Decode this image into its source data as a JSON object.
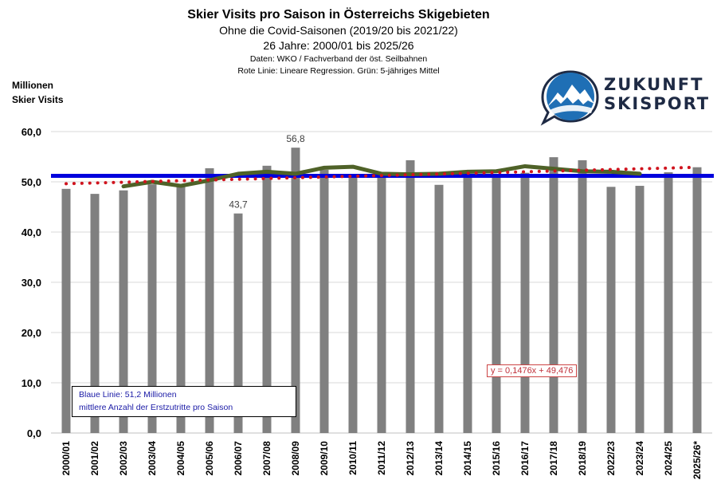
{
  "header": {
    "title": "Skier Visits pro Saison in Österreichs Skigebieten",
    "subtitle1": "Ohne die Covid-Saisonen (2019/20 bis 2021/22)",
    "subtitle2": "26 Jahre: 2000/01 bis 2025/26",
    "source": "Daten: WKO / Fachverband der öst. Seilbahnen",
    "legend_note": "Rote Linie: Lineare Regression. Grün: 5-jähriges Mittel"
  },
  "logo": {
    "line1": "ZUKUNFT",
    "line2": "SKISPORT"
  },
  "colors": {
    "bar": "#808080",
    "mean_line": "#0000dd",
    "regression": "#d0141e",
    "moving_avg": "#4f6228",
    "grid": "#d9d9d9"
  },
  "chart_data": {
    "type": "bar",
    "title": "Skier Visits pro Saison in Österreichs Skigebieten",
    "ylabel_line1": "Millionen",
    "ylabel_line2": "Skier Visits",
    "ylim": [
      0,
      60
    ],
    "yticks": [
      "0,0",
      "10,0",
      "20,0",
      "30,0",
      "40,0",
      "50,0",
      "60,0"
    ],
    "ytick_values": [
      0,
      10,
      20,
      30,
      40,
      50,
      60
    ],
    "grid": true,
    "categories": [
      "2000/01",
      "2001/02",
      "2002/03",
      "2003/04",
      "2004/05",
      "2005/06",
      "2006/07",
      "2007/08",
      "2008/09",
      "2009/10",
      "2010/11",
      "2011/12",
      "2012/13",
      "2013/14",
      "2014/15",
      "2015/16",
      "2016/17",
      "2017/18",
      "2018/19",
      "2022/23",
      "2023/24",
      "2024/25",
      "2025/26*"
    ],
    "values": [
      48.6,
      47.6,
      48.3,
      49.5,
      49.0,
      52.7,
      43.7,
      53.2,
      56.8,
      52.4,
      51.5,
      51.2,
      54.3,
      49.4,
      51.5,
      51.5,
      51.8,
      54.9,
      54.3,
      49.0,
      49.2,
      51.9,
      52.9
    ],
    "data_labels": [
      {
        "index": 6,
        "text": "43,7"
      },
      {
        "index": 8,
        "text": "56,8"
      }
    ],
    "mean_line": {
      "value": 51.2,
      "label_line1": "Blaue Linie: 51,2  Millionen",
      "label_line2": "mittlere Anzahl der Erstzutritte pro Saison"
    },
    "regression": {
      "slope": 0.1476,
      "intercept": 49.476,
      "equation": "y = 0,1476x + 49,476"
    },
    "moving_average": {
      "name": "5-jähriges Mittel",
      "start_index": 2,
      "values": [
        49.1,
        50.0,
        49.2,
        50.3,
        51.6,
        52.0,
        51.6,
        52.8,
        53.0,
        51.6,
        51.5,
        51.6,
        52.0,
        52.1,
        53.1,
        52.6,
        52.1,
        52.0,
        51.6
      ]
    }
  }
}
